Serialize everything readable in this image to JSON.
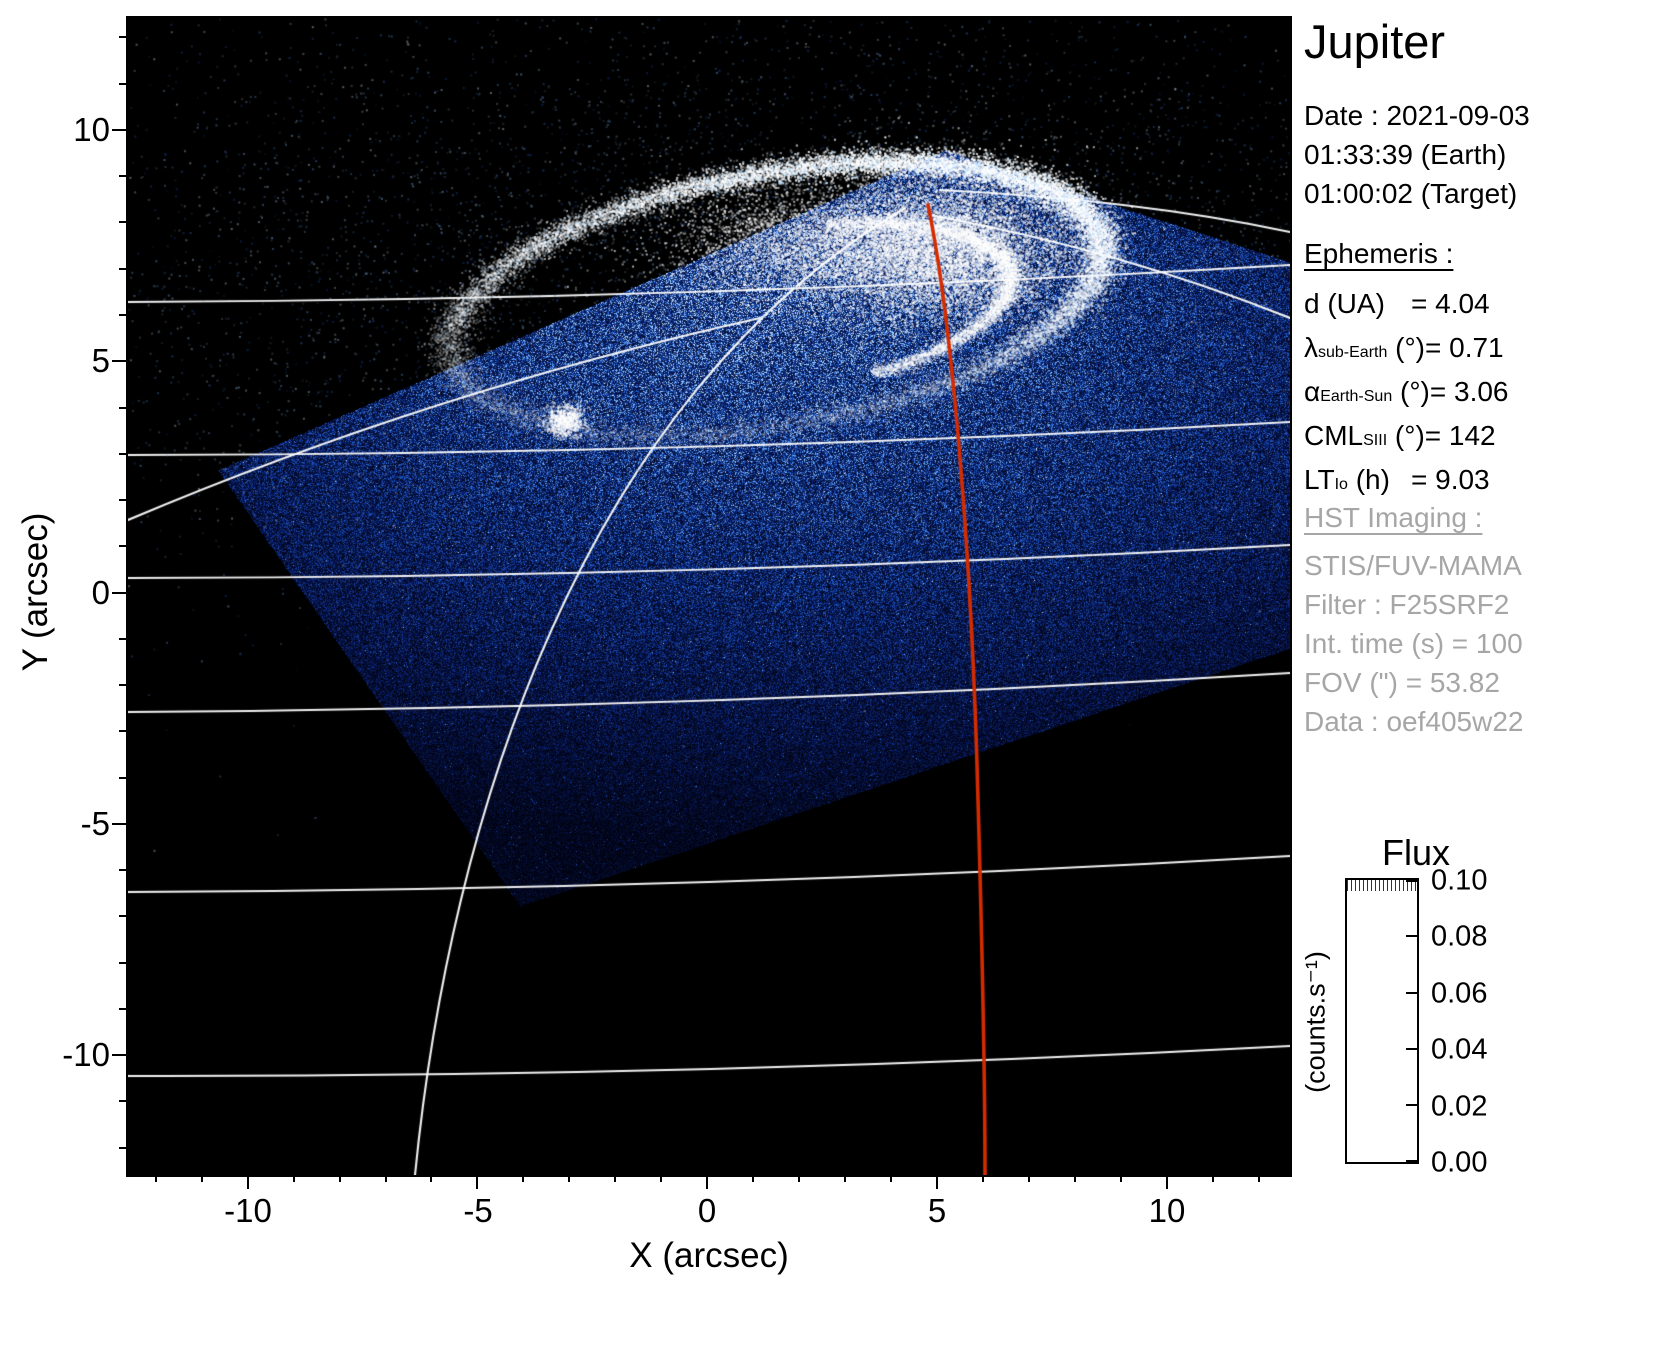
{
  "panel": {
    "title": "Jupiter",
    "date_lines": [
      "Date : 2021-09-03",
      "01:33:39 (Earth)",
      "01:00:02 (Target)"
    ],
    "ephemeris": {
      "heading": "Ephemeris :",
      "rows": [
        {
          "pre": "d",
          "sub": "",
          "post": " (UA)",
          "value": "= 4.04"
        },
        {
          "pre": "λ",
          "sub": "sub-Earth",
          "post": " (°)",
          "value": "= 0.71"
        },
        {
          "pre": "α",
          "sub": "Earth-Sun",
          "post": " (°)",
          "value": "= 3.06"
        },
        {
          "pre": "CML",
          "sub": "SIII",
          "post": " (°)",
          "value": "= 142"
        },
        {
          "pre": "LT",
          "sub": "Io",
          "post": " (h)",
          "value": "= 9.03"
        }
      ]
    },
    "hst": {
      "heading": "HST Imaging :",
      "lines": [
        "STIS/FUV-MAMA",
        "Filter : F25SRF2",
        "Int. time (s) = 100",
        "FOV (\") = 53.82",
        "Data : oef405w22"
      ]
    }
  },
  "colorbar": {
    "title": "Flux",
    "unit": "(counts.s⁻¹)",
    "tick_labels": [
      "0.10",
      "0.08",
      "0.06",
      "0.04",
      "0.02",
      "0.00"
    ]
  },
  "chart_data": {
    "type": "heatmap",
    "title": "Jupiter",
    "xlabel": "X (arcsec)",
    "ylabel": "Y (arcsec)",
    "xlim": [
      -12.6,
      12.67
    ],
    "ylim": [
      -12.59,
      12.42
    ],
    "x_ticks": [
      -10,
      -5,
      0,
      5,
      10
    ],
    "y_ticks": [
      -10,
      -5,
      0,
      5,
      10
    ],
    "x_tick_labels": [
      "-10",
      "-5",
      "0",
      "5",
      "10"
    ],
    "y_tick_labels": [
      "10",
      "5",
      "0",
      "-5",
      "-10"
    ],
    "colorbar": {
      "title": "Flux",
      "unit": "(counts.s⁻¹)",
      "range": [
        0.0,
        0.1
      ],
      "ticks": [
        0.1,
        0.08,
        0.06,
        0.04,
        0.02,
        0.0
      ]
    },
    "content": "HST STIS/FUV-MAMA far-UV image of Jupiter's northern aurora: bright white auroral oval near the top, tilted square instrument field of view filled with blue photon noise, white planetary latitude/longitude grid lines over a black sky, and a red meridian curve crossing the frame near x = 5-6 arcsec",
    "ephemeris_values": {
      "d_UA": 4.04,
      "lambda_subEarth_deg": 0.71,
      "alpha_EarthSun_deg": 3.06,
      "CML_SIII_deg": 142,
      "LT_Io_h": 9.03
    },
    "observation": {
      "date": "2021-09-03",
      "time_earth": "01:33:39",
      "time_target": "01:00:02",
      "instrument": "STIS/FUV-MAMA",
      "filter": "F25SRF2",
      "int_time_s": 100,
      "fov_arcsec": 53.82,
      "data_id": "oef405w22"
    },
    "colors": {
      "background": "#000000",
      "grid": "#ffffff",
      "overlay_line": "#d42c00",
      "palette": [
        "#000008",
        "#0a2070",
        "#1e5ac8",
        "#8cc6ff",
        "#ffffff"
      ]
    }
  }
}
